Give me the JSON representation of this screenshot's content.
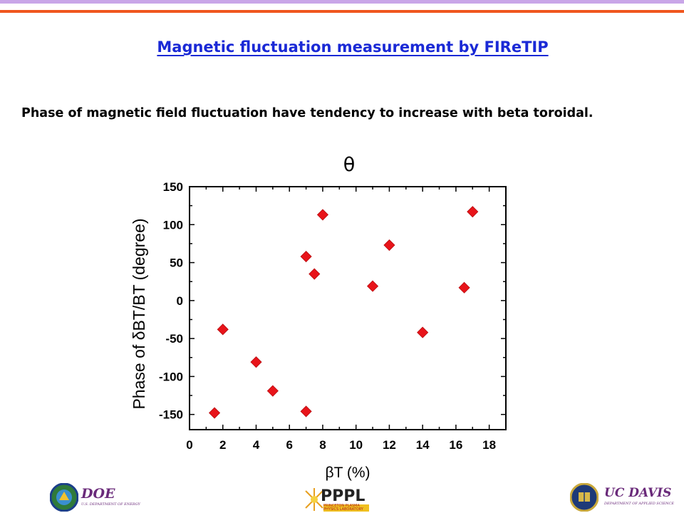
{
  "slide": {
    "title": "Magnetic fluctuation measurement by FIReTIP",
    "subtitle": "Phase of magnetic field fluctuation have tendency to increase with beta toroidal.",
    "theta_label": "θ"
  },
  "chart_data": {
    "type": "scatter",
    "xlabel": "βT (%)",
    "ylabel": "Phase of δBT/BT (degree)",
    "xlim": [
      0,
      19
    ],
    "ylim": [
      -170,
      150
    ],
    "xticks": [
      0,
      2,
      4,
      6,
      8,
      10,
      12,
      14,
      16,
      18
    ],
    "yticks": [
      -150,
      -100,
      -50,
      0,
      50,
      100,
      150
    ],
    "grid": false,
    "marker": "diamond",
    "marker_color": "#e8141a",
    "x": [
      1.5,
      2.0,
      4.0,
      5.0,
      7.0,
      7.0,
      7.5,
      8.0,
      11.0,
      12.0,
      14.0,
      16.5,
      17.0
    ],
    "y": [
      -148,
      -38,
      -81,
      -119,
      -146,
      58,
      35,
      113,
      19,
      73,
      -42,
      17,
      117
    ]
  },
  "logos": {
    "doe": {
      "name": "DOE",
      "caption": "U.S. DEPARTMENT OF ENERGY"
    },
    "pppl": {
      "name": "PPPL",
      "caption": "PRINCETON PLASMA PHYSICS LABORATORY"
    },
    "ucdavis": {
      "name": "UC DAVIS",
      "caption": "DEPARTMENT OF APPLIED SCIENCE"
    }
  },
  "colors": {
    "title": "#1a29d6",
    "top_bar": "#c9a6e8",
    "accent_bar": "#f0561e",
    "marker": "#e8141a"
  }
}
